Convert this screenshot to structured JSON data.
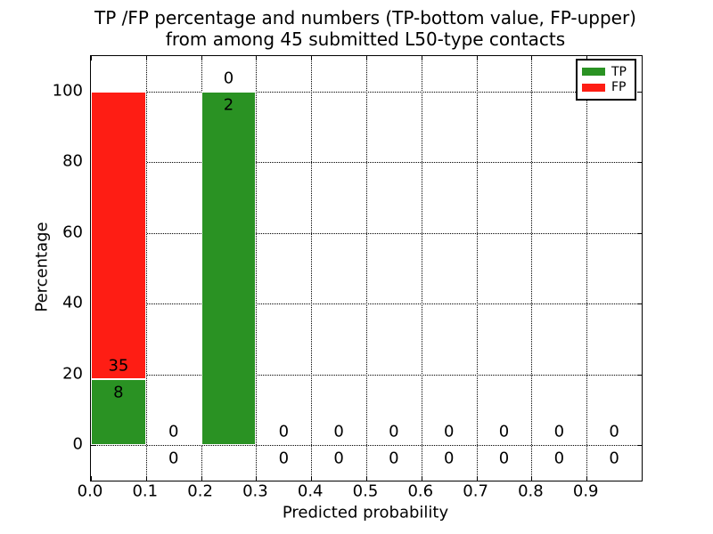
{
  "figure": {
    "title_line1": "TP /FP percentage and numbers (TP-bottom value, FP-upper)",
    "title_line2": "from among 45 submitted L50-type contacts"
  },
  "chart_data": {
    "type": "bar",
    "stacked": true,
    "title": "TP /FP percentage and numbers (TP-bottom value, FP-upper) from among 45 submitted L50-type contacts",
    "xlabel": "Predicted probability",
    "ylabel": "Percentage",
    "xlim": [
      0.0,
      1.0
    ],
    "ylim": [
      -10,
      110
    ],
    "xtick_labels": [
      "0.0",
      "0.1",
      "0.2",
      "0.3",
      "0.4",
      "0.5",
      "0.6",
      "0.7",
      "0.8",
      "0.9"
    ],
    "ytick_labels": [
      "0",
      "20",
      "40",
      "60",
      "80",
      "100"
    ],
    "grid": "dotted",
    "total_submitted": 45,
    "legend": {
      "position": "upper right",
      "entries": [
        {
          "label": "TP",
          "color": "#2a9223"
        },
        {
          "label": "FP",
          "color": "#fe1d14"
        }
      ]
    },
    "bins": [
      {
        "x_start": 0.0,
        "x_end": 0.1,
        "tp_count": 8,
        "fp_count": 35,
        "tp_pct": 18.6,
        "fp_pct": 81.4
      },
      {
        "x_start": 0.1,
        "x_end": 0.2,
        "tp_count": 0,
        "fp_count": 0,
        "tp_pct": 0,
        "fp_pct": 0
      },
      {
        "x_start": 0.2,
        "x_end": 0.3,
        "tp_count": 2,
        "fp_count": 0,
        "tp_pct": 100,
        "fp_pct": 0
      },
      {
        "x_start": 0.3,
        "x_end": 0.4,
        "tp_count": 0,
        "fp_count": 0,
        "tp_pct": 0,
        "fp_pct": 0
      },
      {
        "x_start": 0.4,
        "x_end": 0.5,
        "tp_count": 0,
        "fp_count": 0,
        "tp_pct": 0,
        "fp_pct": 0
      },
      {
        "x_start": 0.5,
        "x_end": 0.6,
        "tp_count": 0,
        "fp_count": 0,
        "tp_pct": 0,
        "fp_pct": 0
      },
      {
        "x_start": 0.6,
        "x_end": 0.7,
        "tp_count": 0,
        "fp_count": 0,
        "tp_pct": 0,
        "fp_pct": 0
      },
      {
        "x_start": 0.7,
        "x_end": 0.8,
        "tp_count": 0,
        "fp_count": 0,
        "tp_pct": 0,
        "fp_pct": 0
      },
      {
        "x_start": 0.8,
        "x_end": 0.9,
        "tp_count": 0,
        "fp_count": 0,
        "tp_pct": 0,
        "fp_pct": 0
      },
      {
        "x_start": 0.9,
        "x_end": 1.0,
        "tp_count": 0,
        "fp_count": 0,
        "tp_pct": 0,
        "fp_pct": 0
      }
    ]
  }
}
